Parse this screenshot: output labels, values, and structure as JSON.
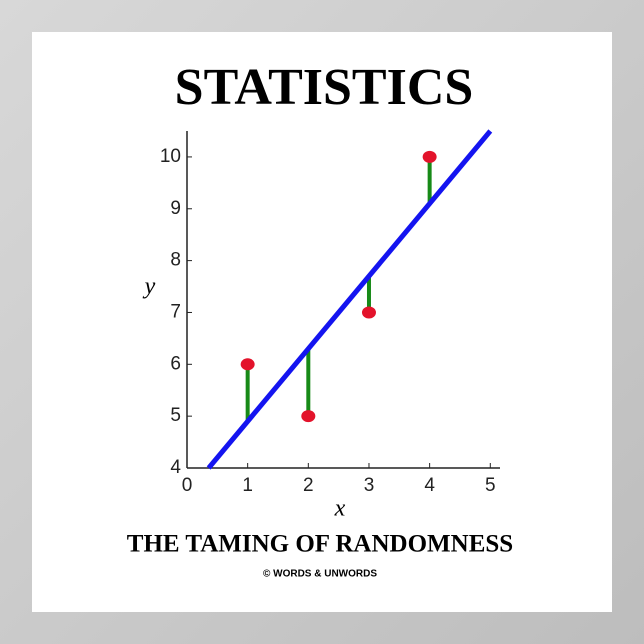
{
  "chart_data": {
    "type": "scatter",
    "title": "STATISTICS",
    "subtitle": "THE TAMING OF RANDOMNESS",
    "credit": "© WORDS & UNWORDS",
    "xlabel": "x",
    "ylabel": "y",
    "x": [
      1,
      2,
      3,
      4
    ],
    "values": [
      6,
      5,
      7,
      10
    ],
    "color": "#e3132b",
    "fit": {
      "slope": 1.4,
      "intercept": 3.5,
      "color": "#1414f0"
    },
    "residual_color": "#178a17",
    "xlim": [
      0,
      5.16
    ],
    "xticks": [
      0,
      1,
      2,
      3,
      4,
      5
    ],
    "ylim": [
      4,
      10.5
    ],
    "yticks": [
      4,
      5,
      6,
      7,
      8,
      9,
      10
    ]
  }
}
